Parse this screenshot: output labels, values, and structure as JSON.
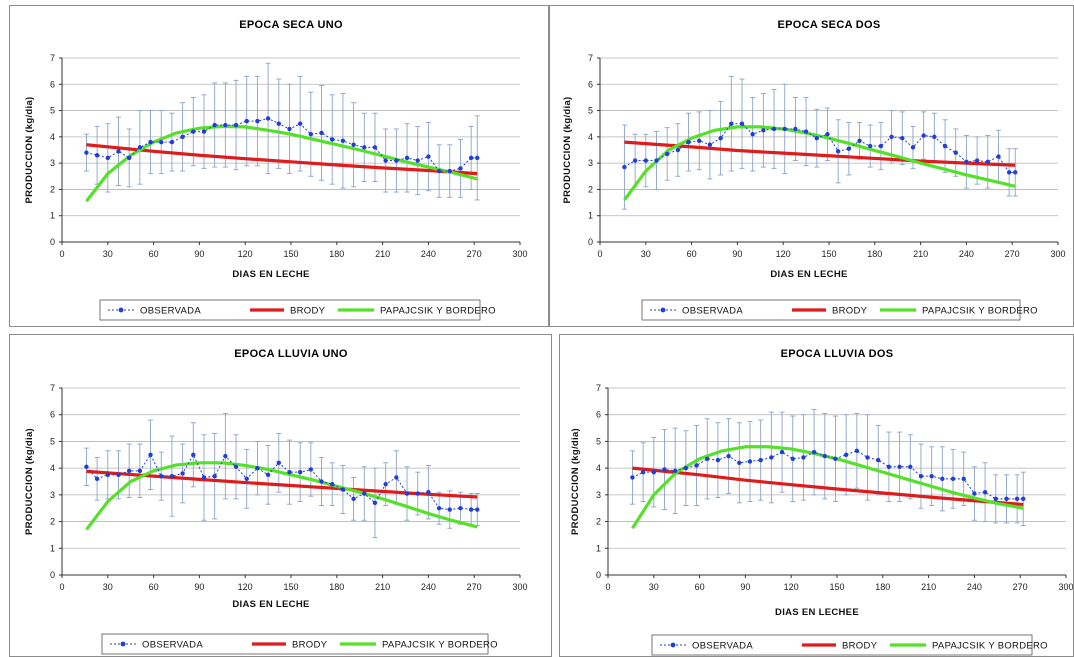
{
  "colors": {
    "observed": "#1f3fd6",
    "brody": "#e01b1b",
    "papajcsik": "#55e02a",
    "grid": "#b5b5b5",
    "errorbar": "#8aa3c9"
  },
  "chart_data": [
    {
      "type": "line",
      "title": "EPOCA SECA UNO",
      "xlabel": "DIAS EN LECHE",
      "ylabel": "PRODUCCION (kg/dia)",
      "xlim": [
        0,
        300
      ],
      "ylim": [
        0,
        7
      ],
      "xticks": [
        "0",
        "30",
        "60",
        "90",
        "120",
        "150",
        "180",
        "210",
        "240",
        "270",
        "300"
      ],
      "yticks": [
        "0",
        "1",
        "2",
        "3",
        "4",
        "5",
        "6",
        "7"
      ],
      "grid": true,
      "legend": "bottom",
      "series": [
        {
          "name": "OBSERVADA",
          "x": [
            16,
            23,
            30,
            37,
            44,
            51,
            58,
            65,
            72,
            79,
            86,
            93,
            100,
            107,
            114,
            121,
            128,
            135,
            142,
            149,
            156,
            163,
            170,
            177,
            184,
            191,
            198,
            205,
            212,
            219,
            226,
            233,
            240,
            247,
            254,
            261,
            268,
            272
          ],
          "y": [
            3.4,
            3.3,
            3.2,
            3.45,
            3.2,
            3.6,
            3.8,
            3.8,
            3.8,
            4.0,
            4.2,
            4.2,
            4.45,
            4.45,
            4.45,
            4.6,
            4.6,
            4.7,
            4.5,
            4.3,
            4.5,
            4.1,
            4.15,
            3.9,
            3.85,
            3.7,
            3.6,
            3.6,
            3.1,
            3.1,
            3.2,
            3.1,
            3.25,
            2.7,
            2.7,
            2.8,
            3.2,
            3.2
          ],
          "err": [
            0.7,
            1.1,
            1.3,
            1.3,
            1.1,
            1.4,
            1.2,
            1.2,
            1.1,
            1.3,
            1.3,
            1.4,
            1.6,
            1.6,
            1.7,
            1.7,
            1.7,
            2.1,
            1.7,
            1.7,
            1.8,
            1.6,
            1.8,
            1.7,
            1.8,
            1.6,
            1.3,
            1.3,
            1.2,
            1.2,
            1.3,
            1.3,
            1.3,
            1.0,
            1.0,
            1.1,
            1.2,
            1.6
          ]
        },
        {
          "name": "BRODY",
          "x": [
            16,
            60,
            90,
            120,
            150,
            180,
            210,
            240,
            272
          ],
          "y": [
            3.7,
            3.45,
            3.3,
            3.17,
            3.05,
            2.93,
            2.82,
            2.72,
            2.6
          ]
        },
        {
          "name": "PAPAJCSIK Y BORDERO",
          "x": [
            16,
            30,
            45,
            60,
            75,
            90,
            105,
            120,
            135,
            150,
            165,
            180,
            195,
            210,
            225,
            240,
            255,
            272
          ],
          "y": [
            1.55,
            2.6,
            3.3,
            3.8,
            4.15,
            4.33,
            4.4,
            4.38,
            4.25,
            4.1,
            3.9,
            3.7,
            3.5,
            3.28,
            3.05,
            2.85,
            2.65,
            2.4
          ]
        }
      ]
    },
    {
      "type": "line",
      "title": "EPOCA SECA DOS",
      "xlabel": "DIAS EN LECHE",
      "ylabel": "PRODUCCION (kg/dia)",
      "xlim": [
        0,
        300
      ],
      "ylim": [
        0,
        7
      ],
      "xticks": [
        "0",
        "30",
        "60",
        "90",
        "120",
        "150",
        "180",
        "210",
        "240",
        "270",
        "300"
      ],
      "yticks": [
        "0",
        "1",
        "2",
        "3",
        "4",
        "5",
        "6",
        "7"
      ],
      "grid": true,
      "legend": "bottom",
      "series": [
        {
          "name": "OBSERVADA",
          "x": [
            16,
            23,
            30,
            37,
            44,
            51,
            58,
            65,
            72,
            79,
            86,
            93,
            100,
            107,
            114,
            121,
            128,
            135,
            142,
            149,
            156,
            163,
            170,
            177,
            184,
            191,
            198,
            205,
            212,
            219,
            226,
            233,
            240,
            247,
            254,
            261,
            268,
            272
          ],
          "y": [
            2.85,
            3.1,
            3.1,
            3.1,
            3.35,
            3.5,
            3.8,
            3.85,
            3.7,
            3.95,
            4.5,
            4.5,
            4.1,
            4.25,
            4.3,
            4.3,
            4.3,
            4.2,
            3.95,
            4.1,
            3.45,
            3.55,
            3.85,
            3.65,
            3.65,
            4.0,
            3.95,
            3.6,
            4.05,
            4.0,
            3.65,
            3.4,
            3.05,
            3.1,
            3.05,
            3.25,
            2.65,
            2.65
          ],
          "err": [
            1.6,
            1.0,
            1.0,
            1.1,
            1.0,
            1.0,
            1.1,
            1.1,
            1.3,
            1.4,
            1.8,
            1.7,
            1.4,
            1.4,
            1.5,
            1.7,
            1.2,
            1.3,
            1.1,
            1.0,
            1.2,
            1.0,
            0.7,
            0.8,
            0.9,
            1.0,
            1.0,
            0.8,
            0.9,
            0.9,
            1.0,
            0.9,
            1.0,
            0.9,
            1.0,
            1.0,
            0.9,
            0.9
          ]
        },
        {
          "name": "BRODY",
          "x": [
            16,
            60,
            90,
            120,
            150,
            180,
            210,
            240,
            272
          ],
          "y": [
            3.8,
            3.62,
            3.48,
            3.38,
            3.28,
            3.18,
            3.08,
            3.0,
            2.92
          ]
        },
        {
          "name": "PAPAJCSIK Y BORDERO",
          "x": [
            16,
            30,
            45,
            60,
            75,
            90,
            105,
            120,
            135,
            150,
            165,
            180,
            195,
            210,
            225,
            240,
            255,
            272
          ],
          "y": [
            1.6,
            2.7,
            3.5,
            3.95,
            4.25,
            4.38,
            4.38,
            4.3,
            4.15,
            3.95,
            3.72,
            3.48,
            3.25,
            3.0,
            2.78,
            2.55,
            2.35,
            2.12
          ]
        }
      ]
    },
    {
      "type": "line",
      "title": "EPOCA LLUVIA UNO",
      "xlabel": "DIAS EN LECHE",
      "ylabel": "PRODUCCION (kg/dia)",
      "xlim": [
        0,
        300
      ],
      "ylim": [
        0,
        7
      ],
      "xticks": [
        "0",
        "30",
        "60",
        "90",
        "120",
        "150",
        "180",
        "210",
        "240",
        "270",
        "300"
      ],
      "yticks": [
        "0",
        "1",
        "2",
        "3",
        "4",
        "5",
        "6",
        "7"
      ],
      "grid": true,
      "legend": "bottom",
      "series": [
        {
          "name": "OBSERVADA",
          "x": [
            16,
            23,
            30,
            37,
            44,
            51,
            58,
            65,
            72,
            79,
            86,
            93,
            100,
            107,
            114,
            121,
            128,
            135,
            142,
            149,
            156,
            163,
            170,
            177,
            184,
            191,
            198,
            205,
            212,
            219,
            226,
            233,
            240,
            247,
            254,
            261,
            268,
            272
          ],
          "y": [
            4.05,
            3.6,
            3.75,
            3.75,
            3.9,
            3.9,
            4.5,
            3.7,
            3.7,
            3.8,
            4.5,
            3.65,
            3.7,
            4.45,
            4.05,
            3.6,
            4.0,
            3.75,
            4.2,
            3.85,
            3.85,
            3.95,
            3.5,
            3.4,
            3.2,
            2.85,
            3.05,
            2.7,
            3.4,
            3.65,
            3.05,
            3.05,
            3.1,
            2.5,
            2.45,
            2.5,
            2.45,
            2.45
          ],
          "err": [
            0.7,
            0.8,
            0.9,
            0.9,
            1.0,
            1.0,
            1.3,
            0.9,
            1.5,
            1.1,
            1.2,
            1.6,
            1.6,
            1.6,
            1.2,
            1.1,
            1.0,
            1.1,
            1.1,
            1.2,
            1.1,
            1.0,
            0.9,
            0.8,
            0.9,
            0.8,
            1.0,
            1.3,
            0.8,
            1.0,
            1.0,
            0.8,
            1.0,
            0.6,
            0.7,
            0.6,
            0.6,
            0.6
          ]
        },
        {
          "name": "BRODY",
          "x": [
            16,
            60,
            90,
            120,
            150,
            180,
            210,
            240,
            272
          ],
          "y": [
            3.88,
            3.7,
            3.58,
            3.46,
            3.35,
            3.24,
            3.13,
            3.02,
            2.92
          ]
        },
        {
          "name": "PAPAJCSIK Y BORDERO",
          "x": [
            16,
            30,
            45,
            60,
            75,
            90,
            105,
            120,
            135,
            150,
            165,
            180,
            195,
            210,
            225,
            240,
            255,
            272
          ],
          "y": [
            1.7,
            2.75,
            3.5,
            3.9,
            4.12,
            4.2,
            4.2,
            4.1,
            3.95,
            3.75,
            3.55,
            3.32,
            3.1,
            2.85,
            2.58,
            2.3,
            2.05,
            1.8
          ]
        }
      ]
    },
    {
      "type": "line",
      "title": "EPOCA LLUVIA DOS",
      "xlabel": "DIAS EN LECHEE",
      "ylabel": "PRODUCCION (kg/dia)",
      "xlim": [
        0,
        300
      ],
      "ylim": [
        0,
        7
      ],
      "xticks": [
        "0",
        "30",
        "60",
        "90",
        "120",
        "150",
        "180",
        "210",
        "240",
        "270",
        "300"
      ],
      "yticks": [
        "0",
        "1",
        "2",
        "3",
        "4",
        "5",
        "6",
        "7"
      ],
      "grid": true,
      "legend": "bottom",
      "series": [
        {
          "name": "OBSERVADA",
          "x": [
            16,
            23,
            30,
            37,
            44,
            51,
            58,
            65,
            72,
            79,
            86,
            93,
            100,
            107,
            114,
            121,
            128,
            135,
            142,
            149,
            156,
            163,
            170,
            177,
            184,
            191,
            198,
            205,
            212,
            219,
            226,
            233,
            240,
            247,
            254,
            261,
            268,
            272
          ],
          "y": [
            3.65,
            3.85,
            3.85,
            3.95,
            3.9,
            4.0,
            4.1,
            4.35,
            4.3,
            4.45,
            4.2,
            4.25,
            4.3,
            4.4,
            4.6,
            4.35,
            4.4,
            4.6,
            4.45,
            4.35,
            4.5,
            4.65,
            4.4,
            4.3,
            4.05,
            4.05,
            4.05,
            3.7,
            3.7,
            3.6,
            3.6,
            3.6,
            3.05,
            3.1,
            2.85,
            2.85,
            2.85,
            2.85
          ],
          "err": [
            1.0,
            1.1,
            1.3,
            1.5,
            1.6,
            1.4,
            1.5,
            1.5,
            1.4,
            1.4,
            1.5,
            1.5,
            1.5,
            1.7,
            1.5,
            1.6,
            1.6,
            1.6,
            1.6,
            1.6,
            1.5,
            1.4,
            1.6,
            1.3,
            1.3,
            1.3,
            1.2,
            1.2,
            1.1,
            1.2,
            1.1,
            1.0,
            1.0,
            1.1,
            0.9,
            0.9,
            0.9,
            1.0
          ]
        },
        {
          "name": "BRODY",
          "x": [
            16,
            60,
            90,
            120,
            150,
            180,
            210,
            240,
            272
          ],
          "y": [
            4.0,
            3.75,
            3.55,
            3.38,
            3.22,
            3.07,
            2.92,
            2.78,
            2.64
          ]
        },
        {
          "name": "PAPAJCSIK Y BORDERO",
          "x": [
            16,
            30,
            45,
            60,
            75,
            90,
            105,
            120,
            135,
            150,
            165,
            180,
            195,
            210,
            225,
            240,
            255,
            272
          ],
          "y": [
            1.75,
            3.0,
            3.85,
            4.35,
            4.65,
            4.8,
            4.8,
            4.72,
            4.55,
            4.35,
            4.1,
            3.85,
            3.6,
            3.35,
            3.1,
            2.88,
            2.68,
            2.5
          ]
        }
      ]
    }
  ]
}
